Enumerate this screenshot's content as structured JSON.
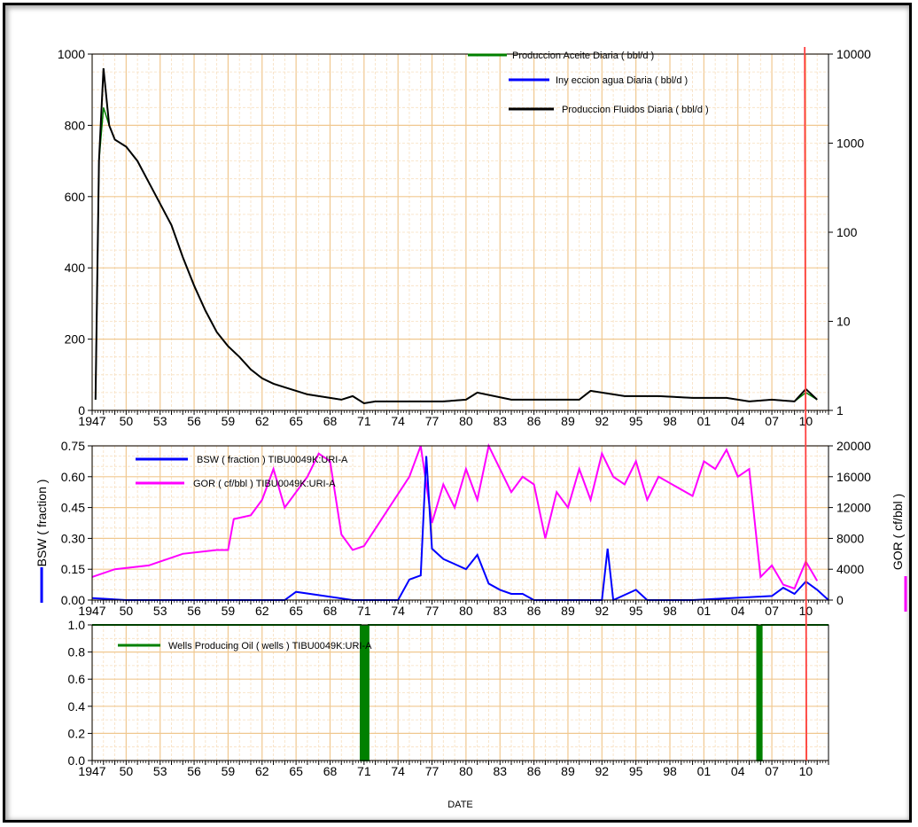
{
  "chart_data": [
    {
      "type": "line",
      "name_panel": "top",
      "y_left_ticks": [
        "0",
        "200",
        "400",
        "600",
        "800",
        "1000"
      ],
      "ylim_left": [
        0,
        1000
      ],
      "y_right_ticks": [
        "1",
        "10",
        "100",
        "1000",
        "10000"
      ],
      "ylim_right": [
        1,
        10000
      ],
      "y_right_scale": "log",
      "x_ticks": [
        "1947",
        "50",
        "53",
        "56",
        "59",
        "62",
        "65",
        "68",
        "71",
        "74",
        "77",
        "80",
        "83",
        "86",
        "89",
        "92",
        "95",
        "98",
        "01",
        "04",
        "07",
        "10"
      ],
      "xlim": [
        1947,
        2012
      ],
      "series": [
        {
          "name": "Produccion Aceite Diaria ( bbl/d )",
          "color": "#008000",
          "axis": "left",
          "x": [
            1947.3,
            1947.6,
            1948,
            1948.5,
            1949,
            1950,
            1951,
            1952,
            1953,
            1954,
            1955,
            1956,
            1957,
            1958,
            1959,
            1960,
            1961,
            1962,
            1963,
            1964,
            1965,
            1966,
            1967,
            1968,
            1969,
            1970,
            1971,
            1972,
            1975,
            1978,
            1980,
            1981,
            1984,
            1987,
            1990,
            1991,
            1994,
            1997,
            2000,
            2003,
            2005,
            2007,
            2009,
            2010,
            2011
          ],
          "values": [
            30,
            700,
            850,
            800,
            760,
            740,
            700,
            640,
            580,
            520,
            430,
            350,
            280,
            220,
            180,
            150,
            115,
            90,
            75,
            65,
            55,
            45,
            40,
            35,
            30,
            40,
            20,
            25,
            25,
            25,
            30,
            50,
            30,
            30,
            30,
            55,
            40,
            40,
            35,
            35,
            25,
            30,
            25,
            50,
            30
          ]
        },
        {
          "name": "Iny eccion agua Diaria ( bbl/d )",
          "color": "#0000ff",
          "axis": "left",
          "x": [],
          "values": []
        },
        {
          "name": "Produccion Fluidos Diaria ( bbl/d )",
          "color": "#000000",
          "axis": "left",
          "x": [
            1947.3,
            1947.6,
            1948,
            1948.5,
            1949,
            1950,
            1951,
            1952,
            1953,
            1954,
            1955,
            1956,
            1957,
            1958,
            1959,
            1960,
            1961,
            1962,
            1963,
            1964,
            1965,
            1966,
            1967,
            1968,
            1969,
            1970,
            1971,
            1972,
            1975,
            1978,
            1980,
            1981,
            1984,
            1987,
            1990,
            1991,
            1994,
            1997,
            2000,
            2003,
            2005,
            2007,
            2009,
            2010,
            2011
          ],
          "values": [
            30,
            700,
            960,
            800,
            760,
            740,
            700,
            640,
            580,
            520,
            430,
            350,
            280,
            220,
            180,
            150,
            115,
            90,
            75,
            65,
            55,
            45,
            40,
            35,
            30,
            40,
            20,
            25,
            25,
            25,
            30,
            50,
            30,
            30,
            30,
            55,
            40,
            40,
            35,
            35,
            25,
            30,
            25,
            60,
            30
          ]
        }
      ],
      "vline_x": 2009.9
    },
    {
      "type": "line",
      "name_panel": "middle",
      "ylabel_left": "BSW ( fraction )",
      "ylabel_right": "GOR ( cf/bbl )",
      "y_left_ticks": [
        "0.00",
        "0.15",
        "0.30",
        "0.45",
        "0.60",
        "0.75"
      ],
      "ylim_left": [
        0,
        0.75
      ],
      "y_right_ticks": [
        "0",
        "4000",
        "8000",
        "12000",
        "16000",
        "20000"
      ],
      "ylim_right": [
        0,
        20000
      ],
      "x_ticks": [
        "1947",
        "50",
        "53",
        "56",
        "59",
        "62",
        "65",
        "68",
        "71",
        "74",
        "77",
        "80",
        "83",
        "86",
        "89",
        "92",
        "95",
        "98",
        "01",
        "04",
        "07",
        "10"
      ],
      "xlim": [
        1947,
        2012
      ],
      "series": [
        {
          "name": "BSW ( fraction ) TIBU0049K:URI-A",
          "color": "#0000ff",
          "axis": "left",
          "x": [
            1947,
            1950,
            1960,
            1964,
            1965,
            1970,
            1971,
            1974,
            1975,
            1976,
            1976.5,
            1977,
            1978,
            1980,
            1981,
            1982,
            1983,
            1984,
            1985,
            1986,
            1988,
            1992,
            1992.5,
            1993,
            1995,
            1996,
            2000,
            2007,
            2008,
            2009,
            2010,
            2011,
            2012
          ],
          "values": [
            0.01,
            0.0,
            0.0,
            0.0,
            0.04,
            0.0,
            0.0,
            0.0,
            0.1,
            0.12,
            0.7,
            0.25,
            0.2,
            0.15,
            0.22,
            0.08,
            0.05,
            0.03,
            0.03,
            0.0,
            0.0,
            0.0,
            0.25,
            0.0,
            0.05,
            0.0,
            0.0,
            0.02,
            0.06,
            0.03,
            0.09,
            0.05,
            0.0
          ]
        },
        {
          "name": "GOR ( cf/bbl ) TIBU0049K:URI-A",
          "color": "#ff00ff",
          "axis": "right",
          "x": [
            1947,
            1949,
            1952,
            1955,
            1958,
            1959,
            1959.5,
            1961,
            1962,
            1963,
            1964,
            1965,
            1966,
            1967,
            1968,
            1969,
            1970,
            1971,
            1975,
            1976,
            1977,
            1978,
            1979,
            1980,
            1981,
            1982,
            1984,
            1985,
            1986,
            1987,
            1988,
            1989,
            1990,
            1991,
            1992,
            1993,
            1994,
            1995,
            1996,
            1997,
            2000,
            2001,
            2002,
            2003,
            2004,
            2005,
            2006,
            2007,
            2008,
            2009,
            2010,
            2011
          ],
          "values": [
            3000,
            4000,
            4500,
            6000,
            6500,
            6500,
            10500,
            11000,
            13000,
            17000,
            12000,
            14000,
            16000,
            19000,
            18000,
            8500,
            6500,
            7000,
            16000,
            20000,
            10000,
            15000,
            12000,
            17000,
            13000,
            20000,
            14000,
            16000,
            15000,
            8000,
            14000,
            12000,
            17000,
            13000,
            19000,
            16000,
            15000,
            18000,
            13000,
            16000,
            13500,
            18000,
            17000,
            19500,
            16000,
            17000,
            3000,
            4500,
            2000,
            1500,
            5000,
            2500
          ]
        }
      ],
      "vline_x": 2009.9
    },
    {
      "type": "line",
      "name_panel": "bottom",
      "xlabel": "DATE",
      "y_left_ticks": [
        "0.0",
        "0.2",
        "0.4",
        "0.6",
        "0.8",
        "1.0"
      ],
      "ylim_left": [
        0,
        1
      ],
      "x_ticks": [
        "1947",
        "50",
        "53",
        "56",
        "59",
        "62",
        "65",
        "68",
        "71",
        "74",
        "77",
        "80",
        "83",
        "86",
        "89",
        "92",
        "95",
        "98",
        "01",
        "04",
        "07",
        "10"
      ],
      "xlim": [
        1947,
        2012
      ],
      "series": [
        {
          "name": "Wells Producing Oil ( wells ) TIBU0049K:URI-A",
          "color": "#008000",
          "axis": "left",
          "x": [
            1947,
            1970.7,
            1970.7,
            1971.4,
            1971.4,
            2005.7,
            2005.7,
            2006.1,
            2006.1,
            2012
          ],
          "values": [
            1,
            1,
            0,
            0,
            1,
            1,
            0,
            0,
            1,
            1
          ]
        }
      ],
      "vline_x": 2009.9
    }
  ]
}
